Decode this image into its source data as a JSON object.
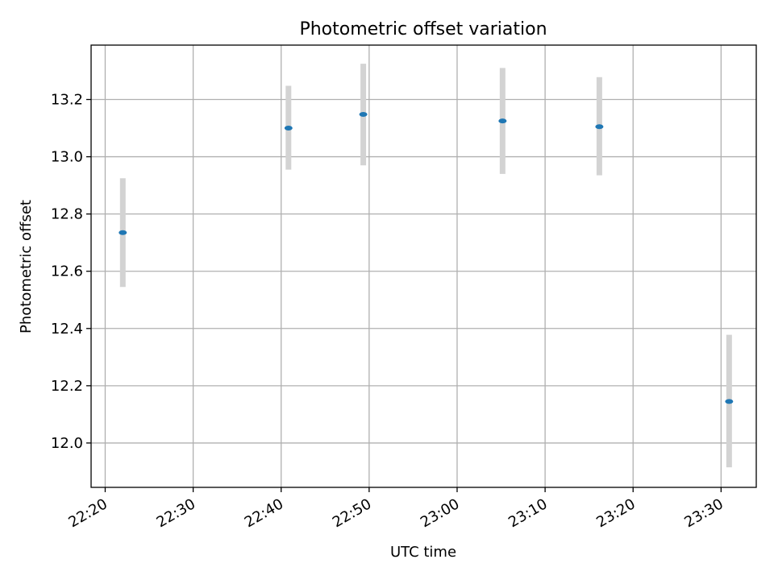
{
  "chart_data": {
    "type": "scatter",
    "title": "Photometric offset variation",
    "xlabel": "UTC time",
    "ylabel": "Photometric offset",
    "x_ticks": [
      "22:20",
      "22:30",
      "22:40",
      "22:50",
      "23:00",
      "23:10",
      "23:20",
      "23:30"
    ],
    "y_ticks": [
      "12.0",
      "12.2",
      "12.4",
      "12.6",
      "12.8",
      "13.0",
      "13.2"
    ],
    "xlim": [
      "22:18:24",
      "23:34:00"
    ],
    "ylim": [
      11.845,
      13.39
    ],
    "grid": true,
    "series": [
      {
        "points": [
          {
            "x": "22:22:00",
            "y": 12.735,
            "yerr_low": 12.545,
            "yerr_high": 12.925
          },
          {
            "x": "22:40:50",
            "y": 13.1,
            "yerr_low": 12.955,
            "yerr_high": 13.248
          },
          {
            "x": "22:49:20",
            "y": 13.148,
            "yerr_low": 12.97,
            "yerr_high": 13.325
          },
          {
            "x": "23:05:10",
            "y": 13.125,
            "yerr_low": 12.94,
            "yerr_high": 13.31
          },
          {
            "x": "23:16:10",
            "y": 13.105,
            "yerr_low": 12.935,
            "yerr_high": 13.278
          },
          {
            "x": "23:30:55",
            "y": 12.145,
            "yerr_low": 11.915,
            "yerr_high": 12.378
          }
        ]
      }
    ],
    "colors": {
      "point": "#1f77b4",
      "errorbar": "#d3d3d3",
      "grid": "#b0b0b0",
      "axes": "#000000"
    }
  }
}
